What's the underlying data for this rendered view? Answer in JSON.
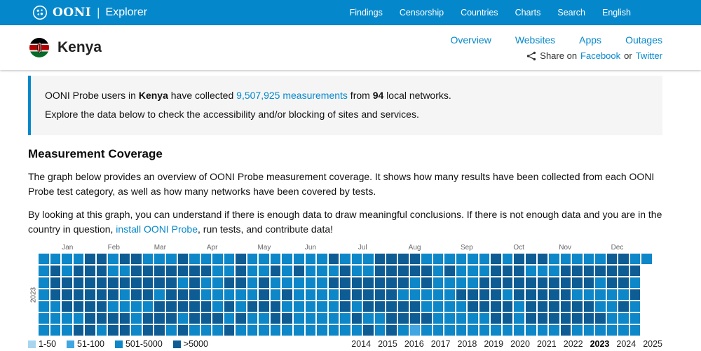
{
  "navbar": {
    "brand": {
      "ooni": "OONI",
      "divider": "|",
      "explorer": "Explorer"
    },
    "items": [
      {
        "label": "Findings"
      },
      {
        "label": "Censorship"
      },
      {
        "label": "Countries"
      },
      {
        "label": "Charts"
      },
      {
        "label": "Search"
      },
      {
        "label": "English"
      }
    ]
  },
  "country_header": {
    "name": "Kenya",
    "tabs": [
      {
        "label": "Overview"
      },
      {
        "label": "Websites"
      },
      {
        "label": "Apps"
      },
      {
        "label": "Outages"
      }
    ],
    "share": {
      "prefix": "Share on",
      "facebook": "Facebook",
      "or": "or",
      "twitter": "Twitter"
    }
  },
  "info_box": {
    "line1": {
      "p1": "OONI Probe users in ",
      "country": "Kenya",
      "p2": " have collected ",
      "link": "9,507,925 measurements",
      "p3": " from ",
      "networks": "94",
      "p4": " local networks."
    },
    "line2": "Explore the data below to check the accessibility and/or blocking of sites and services."
  },
  "coverage": {
    "title": "Measurement Coverage",
    "paragraph1": "The graph below provides an overview of OONI Probe measurement coverage. It shows how many results have been collected from each OONI Probe test category, as well as how many networks have been covered by tests.",
    "paragraph2": {
      "p1": "By looking at this graph, you can understand if there is enough data to draw meaningful conclusions. If there is not enough data and you are in the country in question, ",
      "link": "install OONI Probe",
      "p2": ", run tests, and contribute data!"
    }
  },
  "chart_data": {
    "type": "heatmap",
    "title": "OONI Probe measurement coverage calendar heatmap, Kenya, year 2023",
    "year_label": "2023",
    "weeks": 53,
    "day_rows": 7,
    "months": [
      "Jan",
      "Feb",
      "Mar",
      "Apr",
      "May",
      "Jun",
      "Jul",
      "Aug",
      "Sep",
      "Oct",
      "Nov",
      "Dec"
    ],
    "month_start_weeks": [
      0,
      4,
      8,
      12,
      17,
      21,
      25,
      30,
      34,
      39,
      43,
      47
    ],
    "levels": {
      "1": "#a8d6ee",
      "2": "#41a6e2",
      "3": "#0d87c8",
      "4": "#0e5c94"
    },
    "legend": [
      {
        "label": "1-50",
        "color": "#a8d6ee"
      },
      {
        "label": "51-100",
        "color": "#41a6e2"
      },
      {
        "label": "501-5000",
        "color": "#0d87c8"
      },
      {
        "label": ">5000",
        "color": "#0e5c94"
      }
    ],
    "grid": [
      "33334434433343333433333334333444433333343444333334433",
      "3434443344444443343343433343344444343334443334444444",
      "3444444444443433443433333444444434333344444444443443",
      "3444444344344433333434333344444333334444344444333334",
      "3344443333444443434443333343444443333444434444443343",
      "3333444434443444343344333334334444333334434444444333",
      "3334434434434333433333333333434323333333333334333333"
    ],
    "years": [
      {
        "label": "2014"
      },
      {
        "label": "2015"
      },
      {
        "label": "2016"
      },
      {
        "label": "2017"
      },
      {
        "label": "2018"
      },
      {
        "label": "2019"
      },
      {
        "label": "2020"
      },
      {
        "label": "2021"
      },
      {
        "label": "2022"
      },
      {
        "label": "2023",
        "selected": true
      },
      {
        "label": "2024"
      },
      {
        "label": "2025"
      }
    ]
  }
}
